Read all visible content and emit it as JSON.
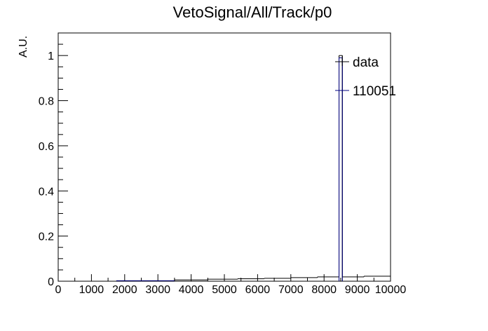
{
  "chart_data": {
    "type": "bar",
    "title": "VetoSignal/All/Track/p0",
    "xlabel": "",
    "ylabel": "A.U.",
    "xlim": [
      0,
      10000
    ],
    "ylim": [
      0,
      1.1
    ],
    "x_ticks": [
      0,
      1000,
      2000,
      3000,
      4000,
      5000,
      6000,
      7000,
      8000,
      9000,
      10000
    ],
    "x_tick_labels": [
      "0",
      "1000",
      "2000",
      "3000",
      "4000",
      "5000",
      "6000",
      "7000",
      "8000",
      "9000",
      "10000"
    ],
    "y_ticks": [
      0,
      0.2,
      0.4,
      0.6,
      0.8,
      1.0
    ],
    "y_tick_labels": [
      "0",
      "0.2",
      "0.4",
      "0.6",
      "0.8",
      "1"
    ],
    "grid": false,
    "legend": "top-right",
    "series": [
      {
        "name": "data",
        "color": "#000000",
        "style": "step",
        "bins": [
          {
            "x0": 0,
            "x1": 1750,
            "y": 0
          },
          {
            "x0": 1750,
            "x1": 3500,
            "y": 0.002
          },
          {
            "x0": 3500,
            "x1": 4500,
            "y": 0.006
          },
          {
            "x0": 4500,
            "x1": 5400,
            "y": 0.009
          },
          {
            "x0": 5400,
            "x1": 6200,
            "y": 0.011
          },
          {
            "x0": 6200,
            "x1": 7000,
            "y": 0.013
          },
          {
            "x0": 7000,
            "x1": 7800,
            "y": 0.016
          },
          {
            "x0": 7800,
            "x1": 8450,
            "y": 0.019
          },
          {
            "x0": 8450,
            "x1": 8550,
            "y": 1.0
          },
          {
            "x0": 8550,
            "x1": 9200,
            "y": 0.019
          },
          {
            "x0": 9200,
            "x1": 10000,
            "y": 0.022
          }
        ]
      },
      {
        "name": "110051",
        "color": "#00007f",
        "style": "step",
        "bins": [
          {
            "x0": 1750,
            "x1": 3500,
            "y": 0.002
          },
          {
            "x0": 8450,
            "x1": 8550,
            "y": 0.99
          }
        ]
      }
    ]
  }
}
